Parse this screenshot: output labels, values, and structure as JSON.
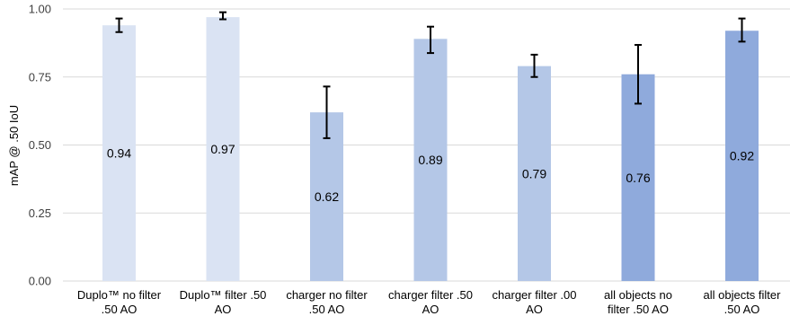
{
  "chart_data": {
    "type": "bar",
    "ylabel": "mAP @ .50 IoU",
    "xlabel": "",
    "ylim": [
      0,
      1
    ],
    "yticks": [
      "0.00",
      "0.25",
      "0.50",
      "0.75",
      "1.00"
    ],
    "grid": true,
    "categories": [
      [
        "Duplo™ no filter",
        ".50 AO"
      ],
      [
        "Duplo™ filter .50",
        "AO"
      ],
      [
        "charger no filter",
        ".50 AO"
      ],
      [
        "charger filter .50",
        "AO"
      ],
      [
        "charger filter .00",
        "AO"
      ],
      [
        "all objects no",
        "filter .50 AO"
      ],
      [
        "all objects filter",
        ".50 AO"
      ]
    ],
    "values": [
      0.94,
      0.97,
      0.62,
      0.89,
      0.79,
      0.76,
      0.92
    ],
    "value_labels": [
      "0.94",
      "0.97",
      "0.62",
      "0.89",
      "0.79",
      "0.76",
      "0.92"
    ],
    "error_low": [
      0.915,
      0.962,
      0.525,
      0.838,
      0.75,
      0.652,
      0.88
    ],
    "error_high": [
      0.965,
      0.988,
      0.715,
      0.935,
      0.832,
      0.868,
      0.965
    ],
    "bar_colors": [
      "#dae3f3",
      "#dae3f3",
      "#b4c7e7",
      "#b4c7e7",
      "#b4c7e7",
      "#8faadc",
      "#8faadc"
    ]
  }
}
